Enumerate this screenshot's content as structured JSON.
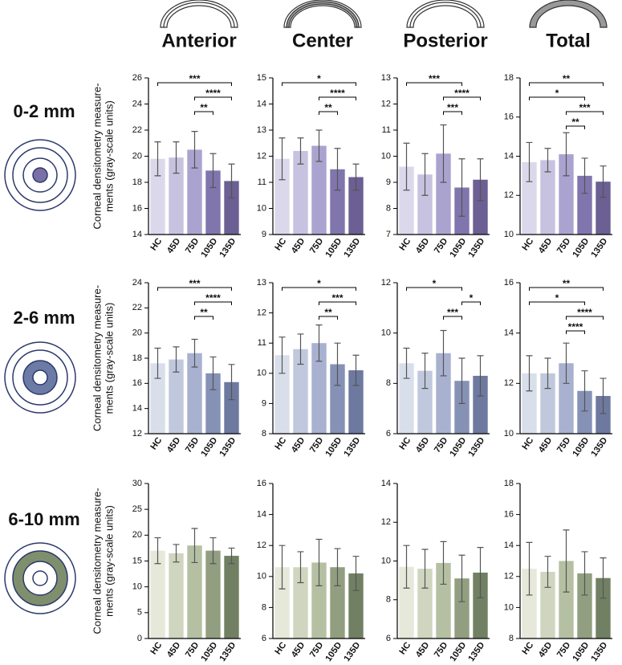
{
  "columns": [
    "Anterior",
    "Center",
    "Posterior",
    "Total"
  ],
  "rows": [
    "0-2 mm",
    "2-6 mm",
    "6-10 mm"
  ],
  "chart_data": [
    {
      "type": "bar",
      "ylabel": [
        "Corneal densitometry measure-",
        "ments (gray-scale units)"
      ],
      "categories": [
        "HC",
        "45D",
        "75D",
        "105D",
        "135D"
      ],
      "values": [
        19.8,
        19.9,
        20.5,
        18.9,
        18.1
      ],
      "errors": [
        1.3,
        1.2,
        1.4,
        1.3,
        1.3
      ],
      "colors": [
        "#dcd8ec",
        "#c8c2e1",
        "#aba3cf",
        "#8175ad",
        "#6b5f93"
      ],
      "ylim": [
        14,
        26
      ],
      "yticks": [
        14,
        16,
        18,
        20,
        22,
        24,
        26
      ],
      "annotations": [
        {
          "groups": [
            "HC",
            "135D"
          ],
          "label": "***"
        },
        {
          "groups": [
            "75D",
            "135D"
          ],
          "label": "****"
        },
        {
          "groups": [
            "75D",
            "105D"
          ],
          "label": "**"
        }
      ]
    },
    {
      "type": "bar",
      "categories": [
        "HC",
        "45D",
        "75D",
        "105D",
        "135D"
      ],
      "values": [
        11.9,
        12.2,
        12.4,
        11.5,
        11.2
      ],
      "errors": [
        0.8,
        0.5,
        0.6,
        0.8,
        0.5
      ],
      "colors": [
        "#dcd8ec",
        "#c8c2e1",
        "#aba3cf",
        "#8175ad",
        "#6b5f93"
      ],
      "ylim": [
        9,
        15
      ],
      "yticks": [
        9,
        10,
        11,
        12,
        13,
        14,
        15
      ],
      "annotations": [
        {
          "groups": [
            "HC",
            "135D"
          ],
          "label": "*"
        },
        {
          "groups": [
            "75D",
            "135D"
          ],
          "label": "****"
        },
        {
          "groups": [
            "75D",
            "105D"
          ],
          "label": "**"
        }
      ]
    },
    {
      "type": "bar",
      "categories": [
        "HC",
        "45D",
        "75D",
        "105D",
        "135D"
      ],
      "values": [
        9.6,
        9.3,
        10.1,
        8.8,
        9.1
      ],
      "errors": [
        0.9,
        0.8,
        1.1,
        1.1,
        0.8
      ],
      "colors": [
        "#dcd8ec",
        "#c8c2e1",
        "#aba3cf",
        "#8175ad",
        "#6b5f93"
      ],
      "ylim": [
        7,
        13
      ],
      "yticks": [
        7,
        8,
        9,
        10,
        11,
        12,
        13
      ],
      "annotations": [
        {
          "groups": [
            "HC",
            "105D"
          ],
          "label": "***"
        },
        {
          "groups": [
            "75D",
            "135D"
          ],
          "label": "****"
        },
        {
          "groups": [
            "75D",
            "105D"
          ],
          "label": "***"
        }
      ]
    },
    {
      "type": "bar",
      "categories": [
        "HC",
        "45D",
        "75D",
        "105D",
        "135D"
      ],
      "values": [
        13.7,
        13.8,
        14.1,
        13.0,
        12.7
      ],
      "errors": [
        1.0,
        0.6,
        1.1,
        0.9,
        0.8
      ],
      "colors": [
        "#dcd8ec",
        "#c8c2e1",
        "#aba3cf",
        "#8175ad",
        "#6b5f93"
      ],
      "ylim": [
        10,
        18
      ],
      "yticks": [
        10,
        12,
        14,
        16,
        18
      ],
      "annotations": [
        {
          "groups": [
            "HC",
            "135D"
          ],
          "label": "**"
        },
        {
          "groups": [
            "HC",
            "105D"
          ],
          "label": "*"
        },
        {
          "groups": [
            "75D",
            "135D"
          ],
          "label": "***"
        },
        {
          "groups": [
            "75D",
            "105D"
          ],
          "label": "**"
        }
      ]
    },
    {
      "type": "bar",
      "ylabel": [
        "Corneal densitometry measure-",
        "ments (gray-scale units)"
      ],
      "categories": [
        "HC",
        "45D",
        "75D",
        "105D",
        "135D"
      ],
      "values": [
        17.6,
        17.9,
        18.4,
        16.8,
        16.1
      ],
      "errors": [
        1.2,
        1.0,
        1.1,
        1.3,
        1.4
      ],
      "colors": [
        "#d8dfeb",
        "#c0c8dd",
        "#a8b1d0",
        "#8691b6",
        "#6e79a0"
      ],
      "ylim": [
        12,
        24
      ],
      "yticks": [
        12,
        14,
        16,
        18,
        20,
        22,
        24
      ],
      "annotations": [
        {
          "groups": [
            "HC",
            "135D"
          ],
          "label": "***"
        },
        {
          "groups": [
            "75D",
            "135D"
          ],
          "label": "****"
        },
        {
          "groups": [
            "75D",
            "105D"
          ],
          "label": "**"
        }
      ]
    },
    {
      "type": "bar",
      "categories": [
        "HC",
        "45D",
        "75D",
        "105D",
        "135D"
      ],
      "values": [
        10.6,
        10.8,
        11.0,
        10.3,
        10.1
      ],
      "errors": [
        0.6,
        0.5,
        0.6,
        0.7,
        0.5
      ],
      "colors": [
        "#d8dfeb",
        "#c0c8dd",
        "#a8b1d0",
        "#8691b6",
        "#6e79a0"
      ],
      "ylim": [
        8,
        13
      ],
      "yticks": [
        8,
        9,
        10,
        11,
        12,
        13
      ],
      "annotations": [
        {
          "groups": [
            "HC",
            "135D"
          ],
          "label": "*"
        },
        {
          "groups": [
            "75D",
            "135D"
          ],
          "label": "***"
        },
        {
          "groups": [
            "75D",
            "105D"
          ],
          "label": "**"
        }
      ]
    },
    {
      "type": "bar",
      "categories": [
        "HC",
        "45D",
        "75D",
        "105D",
        "135D"
      ],
      "values": [
        8.8,
        8.5,
        9.2,
        8.1,
        8.3
      ],
      "errors": [
        0.6,
        0.7,
        0.9,
        0.9,
        0.8
      ],
      "colors": [
        "#d8dfeb",
        "#c0c8dd",
        "#a8b1d0",
        "#8691b6",
        "#6e79a0"
      ],
      "ylim": [
        6,
        12
      ],
      "yticks": [
        6,
        8,
        10,
        12
      ],
      "annotations": [
        {
          "groups": [
            "HC",
            "105D"
          ],
          "label": "*"
        },
        {
          "groups": [
            "105D",
            "135D"
          ],
          "label": "*"
        },
        {
          "groups": [
            "75D",
            "105D"
          ],
          "label": "***"
        }
      ]
    },
    {
      "type": "bar",
      "categories": [
        "HC",
        "45D",
        "75D",
        "105D",
        "135D"
      ],
      "values": [
        12.4,
        12.4,
        12.8,
        11.7,
        11.5
      ],
      "errors": [
        0.7,
        0.6,
        0.8,
        0.8,
        0.7
      ],
      "colors": [
        "#d8dfeb",
        "#c0c8dd",
        "#a8b1d0",
        "#8691b6",
        "#6e79a0"
      ],
      "ylim": [
        10,
        16
      ],
      "yticks": [
        10,
        12,
        14,
        16
      ],
      "annotations": [
        {
          "groups": [
            "HC",
            "135D"
          ],
          "label": "**"
        },
        {
          "groups": [
            "HC",
            "105D"
          ],
          "label": "*"
        },
        {
          "groups": [
            "75D",
            "135D"
          ],
          "label": "****"
        },
        {
          "groups": [
            "75D",
            "105D"
          ],
          "label": "****"
        }
      ]
    },
    {
      "type": "bar",
      "ylabel": [
        "Corneal densitometry measure-",
        "ments (gray-scale units)"
      ],
      "categories": [
        "HC",
        "45D",
        "75D",
        "105D",
        "135D"
      ],
      "values": [
        17,
        16.5,
        18,
        17,
        16
      ],
      "errors": [
        2.5,
        1.7,
        3.3,
        2.5,
        1.5
      ],
      "colors": [
        "#e6e8da",
        "#cfd5bf",
        "#b5c0a3",
        "#919f80",
        "#718063"
      ],
      "ylim": [
        0,
        30
      ],
      "yticks": [
        0,
        5,
        10,
        15,
        20,
        25,
        30
      ]
    },
    {
      "type": "bar",
      "categories": [
        "HC",
        "45D",
        "75D",
        "105D",
        "135D"
      ],
      "values": [
        10.6,
        10.6,
        10.9,
        10.6,
        10.2
      ],
      "errors": [
        1.4,
        1.0,
        1.5,
        1.2,
        1.1
      ],
      "colors": [
        "#e6e8da",
        "#cfd5bf",
        "#b5c0a3",
        "#919f80",
        "#718063"
      ],
      "ylim": [
        6,
        16
      ],
      "yticks": [
        6,
        8,
        10,
        12,
        14,
        16
      ]
    },
    {
      "type": "bar",
      "categories": [
        "HC",
        "45D",
        "75D",
        "105D",
        "135D"
      ],
      "values": [
        9.7,
        9.6,
        9.9,
        9.1,
        9.4
      ],
      "errors": [
        1.1,
        1.0,
        1.1,
        1.2,
        1.3
      ],
      "colors": [
        "#e6e8da",
        "#cfd5bf",
        "#b5c0a3",
        "#919f80",
        "#718063"
      ],
      "ylim": [
        6,
        14
      ],
      "yticks": [
        6,
        8,
        10,
        12,
        14
      ]
    },
    {
      "type": "bar",
      "categories": [
        "HC",
        "45D",
        "75D",
        "105D",
        "135D"
      ],
      "values": [
        12.5,
        12.3,
        13.0,
        12.2,
        11.9
      ],
      "errors": [
        1.7,
        1.0,
        2.0,
        1.4,
        1.3
      ],
      "colors": [
        "#e6e8da",
        "#cfd5bf",
        "#b5c0a3",
        "#919f80",
        "#718063"
      ],
      "ylim": [
        8,
        18
      ],
      "yticks": [
        8,
        10,
        12,
        14,
        16,
        18
      ]
    }
  ]
}
